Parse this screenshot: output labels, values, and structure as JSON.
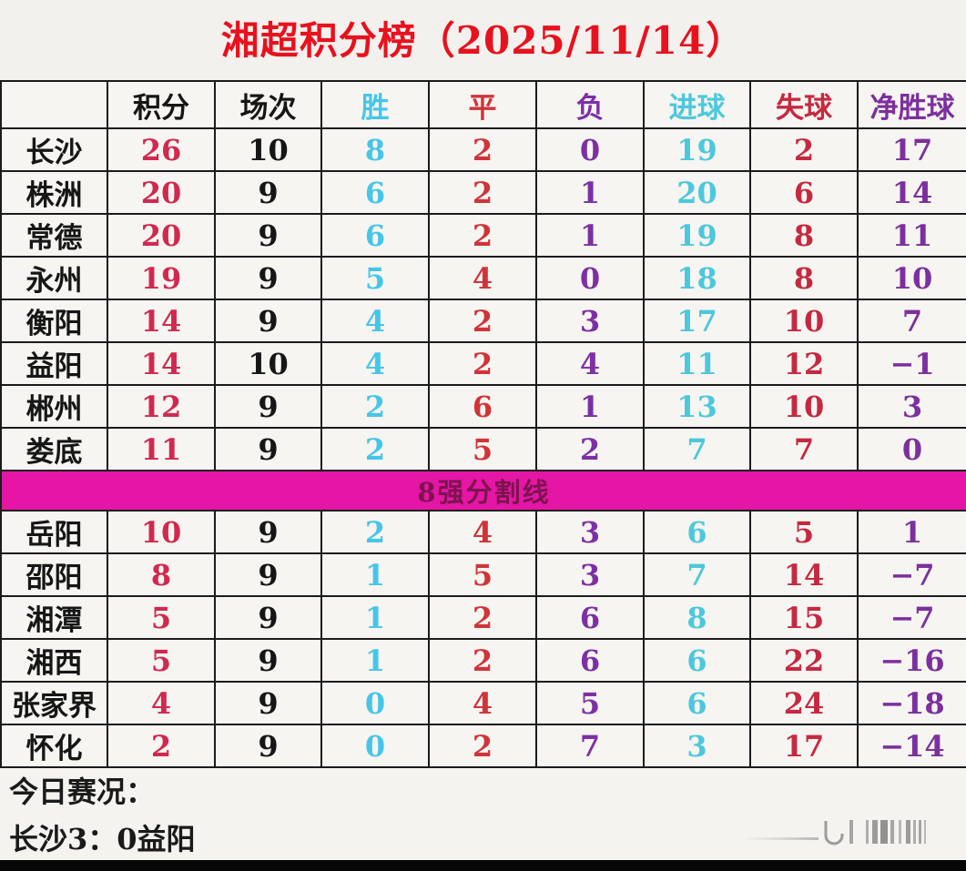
{
  "title": "湘超积分榜（2025/11/14）",
  "chart_data": {
    "type": "table",
    "title": "湘超积分榜（2025/11/14）",
    "columns": [
      "",
      "积分",
      "场次",
      "胜",
      "平",
      "负",
      "进球",
      "失球",
      "净胜球"
    ],
    "rows_top8": [
      [
        "长沙",
        26,
        10,
        8,
        2,
        0,
        19,
        2,
        17
      ],
      [
        "株洲",
        20,
        9,
        6,
        2,
        1,
        20,
        6,
        14
      ],
      [
        "常德",
        20,
        9,
        6,
        2,
        1,
        19,
        8,
        11
      ],
      [
        "永州",
        19,
        9,
        5,
        4,
        0,
        18,
        8,
        10
      ],
      [
        "衡阳",
        14,
        9,
        4,
        2,
        3,
        17,
        10,
        7
      ],
      [
        "益阳",
        14,
        10,
        4,
        2,
        4,
        11,
        12,
        -1
      ],
      [
        "郴州",
        12,
        9,
        2,
        6,
        1,
        13,
        10,
        3
      ],
      [
        "娄底",
        11,
        9,
        2,
        5,
        2,
        7,
        7,
        0
      ]
    ],
    "divider_label": "8强分割线",
    "rows_below": [
      [
        "岳阳",
        10,
        9,
        2,
        4,
        3,
        6,
        5,
        1
      ],
      [
        "邵阳",
        8,
        9,
        1,
        5,
        3,
        7,
        14,
        -7
      ],
      [
        "湘潭",
        5,
        9,
        1,
        2,
        6,
        8,
        15,
        -7
      ],
      [
        "湘西",
        5,
        9,
        1,
        2,
        6,
        6,
        22,
        -16
      ],
      [
        "张家界",
        4,
        9,
        0,
        4,
        5,
        6,
        24,
        -18
      ],
      [
        "怀化",
        2,
        9,
        0,
        2,
        7,
        3,
        17,
        -14
      ]
    ]
  },
  "footer": {
    "today_label": "今日赛况：",
    "result": "长沙3：0益阳"
  },
  "colors": {
    "title_red": "#e8111e",
    "points_red": "#d02950",
    "win_cyan": "#45c6e8",
    "draw_red": "#d03438",
    "loss_purple": "#7d2fa4",
    "goals_for_cyan": "#4cc8dc",
    "goals_against_red": "#c52940",
    "goal_diff_purple": "#7c2f9e",
    "divider_magenta": "#e515a5",
    "divider_text": "#7c144e"
  },
  "watermark": "signature-barcode-mark"
}
